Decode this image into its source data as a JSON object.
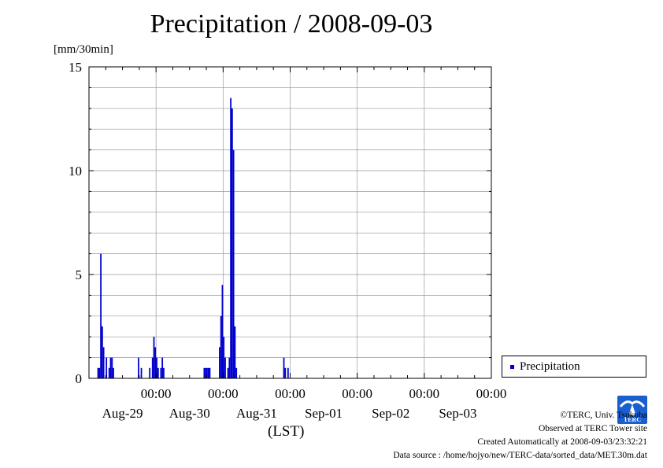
{
  "title": "Precipitation / 2008-09-03",
  "unit_label": "[mm/30min]",
  "xlabel": "(LST)",
  "colors": {
    "bar": "#0000cc",
    "grid": "#999999",
    "axis": "#000000"
  },
  "legend": {
    "label": "Precipitation"
  },
  "credits": {
    "copyright": "©TERC, Univ. Tsukuba",
    "site": "Observed at TERC Tower site",
    "created": "Created Automatically at 2008-09-03/23:32:21",
    "source": "Data source : /home/hojyo/new/TERC-data/sorted_data/MET.30m.dat"
  },
  "logo": {
    "name": "terc-logo",
    "text": "TERC"
  },
  "chart_data": {
    "type": "bar",
    "title": "Precipitation / 2008-09-03",
    "ylabel": "[mm/30min]",
    "xlabel": "(LST)",
    "ylim": [
      0,
      15
    ],
    "yticks": [
      0,
      5,
      10,
      15
    ],
    "xlim_days": [
      0,
      6
    ],
    "xticks": [
      {
        "day": 1,
        "time": "00:00",
        "date": "Aug-29"
      },
      {
        "day": 2,
        "time": "00:00",
        "date": "Aug-30"
      },
      {
        "day": 3,
        "time": "00:00",
        "date": "Aug-31"
      },
      {
        "day": 4,
        "time": "00:00",
        "date": "Sep-01"
      },
      {
        "day": 5,
        "time": "00:00",
        "date": "Sep-02"
      },
      {
        "day": 6,
        "time": "00:00",
        "date": "Sep-03"
      }
    ],
    "grid": true,
    "legend_position": "right",
    "series": [
      {
        "name": "Precipitation",
        "points": [
          {
            "t": "2008-08-28 03:00",
            "v": 0.5
          },
          {
            "t": "2008-08-28 03:30",
            "v": 0.5
          },
          {
            "t": "2008-08-28 04:00",
            "v": 6.0
          },
          {
            "t": "2008-08-28 04:30",
            "v": 2.5
          },
          {
            "t": "2008-08-28 05:00",
            "v": 1.5
          },
          {
            "t": "2008-08-28 06:00",
            "v": 1.0
          },
          {
            "t": "2008-08-28 07:00",
            "v": 0.5
          },
          {
            "t": "2008-08-28 07:30",
            "v": 1.0
          },
          {
            "t": "2008-08-28 08:00",
            "v": 1.0
          },
          {
            "t": "2008-08-28 08:30",
            "v": 0.5
          },
          {
            "t": "2008-08-28 17:30",
            "v": 1.0
          },
          {
            "t": "2008-08-28 18:30",
            "v": 0.5
          },
          {
            "t": "2008-08-28 21:30",
            "v": 0.5
          },
          {
            "t": "2008-08-28 22:30",
            "v": 1.0
          },
          {
            "t": "2008-08-28 23:00",
            "v": 2.0
          },
          {
            "t": "2008-08-28 23:30",
            "v": 1.5
          },
          {
            "t": "2008-08-29 00:00",
            "v": 1.0
          },
          {
            "t": "2008-08-29 00:30",
            "v": 0.5
          },
          {
            "t": "2008-08-29 01:30",
            "v": 0.5
          },
          {
            "t": "2008-08-29 02:00",
            "v": 1.0
          },
          {
            "t": "2008-08-29 02:30",
            "v": 0.5
          },
          {
            "t": "2008-08-29 17:00",
            "v": 0.5
          },
          {
            "t": "2008-08-29 17:30",
            "v": 0.5
          },
          {
            "t": "2008-08-29 18:00",
            "v": 0.5
          },
          {
            "t": "2008-08-29 18:30",
            "v": 0.5
          },
          {
            "t": "2008-08-29 19:00",
            "v": 0.5
          },
          {
            "t": "2008-08-29 22:30",
            "v": 1.5
          },
          {
            "t": "2008-08-29 23:00",
            "v": 3.0
          },
          {
            "t": "2008-08-29 23:30",
            "v": 4.5
          },
          {
            "t": "2008-08-30 00:00",
            "v": 2.0
          },
          {
            "t": "2008-08-30 00:30",
            "v": 1.0
          },
          {
            "t": "2008-08-30 01:30",
            "v": 0.5
          },
          {
            "t": "2008-08-30 02:00",
            "v": 1.0
          },
          {
            "t": "2008-08-30 02:30",
            "v": 13.5
          },
          {
            "t": "2008-08-30 03:00",
            "v": 13.0
          },
          {
            "t": "2008-08-30 03:30",
            "v": 11.0
          },
          {
            "t": "2008-08-30 04:00",
            "v": 2.5
          },
          {
            "t": "2008-08-30 04:30",
            "v": 0.5
          },
          {
            "t": "2008-08-30 21:30",
            "v": 1.0
          },
          {
            "t": "2008-08-30 22:00",
            "v": 0.5
          },
          {
            "t": "2008-08-30 23:00",
            "v": 0.5
          }
        ]
      }
    ]
  }
}
